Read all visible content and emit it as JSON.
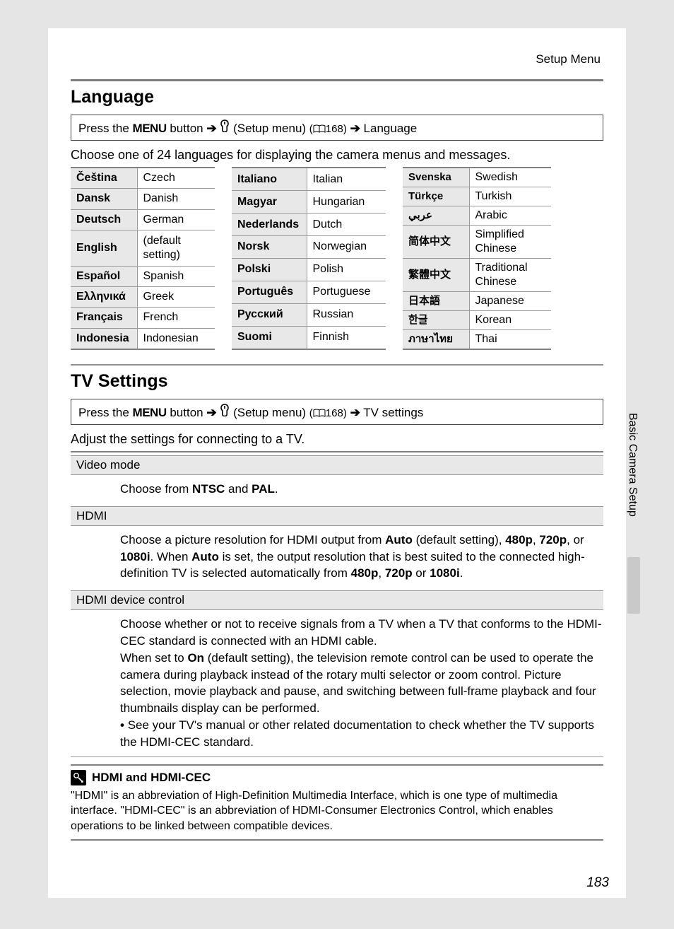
{
  "header": {
    "section": "Setup Menu"
  },
  "language": {
    "title": "Language",
    "nav": {
      "prefix": "Press the",
      "menu": "MENU",
      "button": "button",
      "setup": "(Setup menu)",
      "pageref": "168)",
      "target": "Language"
    },
    "intro": "Choose one of 24 languages for displaying the camera menus and messages.",
    "col1": [
      {
        "n": "Čeština",
        "e": "Czech"
      },
      {
        "n": "Dansk",
        "e": "Danish"
      },
      {
        "n": "Deutsch",
        "e": "German"
      },
      {
        "n": "English",
        "e": "(default setting)"
      },
      {
        "n": "Español",
        "e": "Spanish"
      },
      {
        "n": "Ελληνικά",
        "e": "Greek"
      },
      {
        "n": "Français",
        "e": "French"
      },
      {
        "n": "Indonesia",
        "e": "Indonesian"
      }
    ],
    "col2": [
      {
        "n": "Italiano",
        "e": "Italian"
      },
      {
        "n": "Magyar",
        "e": "Hungarian"
      },
      {
        "n": "Nederlands",
        "e": "Dutch"
      },
      {
        "n": "Norsk",
        "e": "Norwegian"
      },
      {
        "n": "Polski",
        "e": "Polish"
      },
      {
        "n": "Português",
        "e": "Portuguese"
      },
      {
        "n": "Русский",
        "e": "Russian"
      },
      {
        "n": "Suomi",
        "e": "Finnish"
      }
    ],
    "col3": [
      {
        "n": "Svenska",
        "e": "Swedish"
      },
      {
        "n": "Türkçe",
        "e": "Turkish"
      },
      {
        "n": "عربي",
        "e": "Arabic"
      },
      {
        "n": "简体中文",
        "e": "Simplified Chinese"
      },
      {
        "n": "繁體中文",
        "e": "Traditional Chinese"
      },
      {
        "n": "日本語",
        "e": "Japanese"
      },
      {
        "n": "한글",
        "e": "Korean"
      },
      {
        "n": "ภาษาไทย",
        "e": "Thai"
      }
    ]
  },
  "tv": {
    "title": "TV Settings",
    "nav": {
      "prefix": "Press the",
      "menu": "MENU",
      "button": "button",
      "setup": "(Setup menu)",
      "pageref": "168)",
      "target": "TV settings"
    },
    "intro": "Adjust the settings for connecting to a TV.",
    "video_mode": {
      "label": "Video mode",
      "body_pre": "Choose from ",
      "ntsc": "NTSC",
      "and": " and ",
      "pal": "PAL",
      "dot": "."
    },
    "hdmi": {
      "label": "HDMI",
      "p1a": "Choose a picture resolution for HDMI output from ",
      "auto": "Auto",
      "p1b": " (default setting), ",
      "r480": "480p",
      "comma": ", ",
      "r720": "720p",
      "or": ", or ",
      "r1080": "1080i",
      "p1c": ". When ",
      "p1d": " is set, the output resolution that is best suited to the connected high-definition TV is selected automatically from ",
      "p1e": " or ",
      "dot": "."
    },
    "hdc": {
      "label": "HDMI device control",
      "p1": "Choose whether or not to receive signals from a TV when a TV that conforms to the HDMI-CEC standard is connected with an HDMI cable.",
      "p2a": "When set to ",
      "on": "On",
      "p2b": " (default setting), the television remote control can be used to operate the camera during playback instead of the rotary multi selector or zoom control. Picture selection, movie playback and pause, and switching between full-frame playback and four thumbnails display can be performed.",
      "bullet": "See your TV's manual or other related documentation to check whether the TV supports the HDMI-CEC standard."
    }
  },
  "note": {
    "title": "HDMI and HDMI-CEC",
    "body": "\"HDMI\" is an abbreviation of High-Definition Multimedia Interface, which is one type of multimedia interface. \"HDMI-CEC\" is an abbreviation of HDMI-Consumer Electronics Control, which enables operations to be linked between compatible devices."
  },
  "side": {
    "label": "Basic Camera Setup"
  },
  "page_number": "183",
  "colors": {
    "bg": "#e5e5e5",
    "page": "#ffffff",
    "rule": "#808080",
    "shade": "#e8e8e8"
  }
}
